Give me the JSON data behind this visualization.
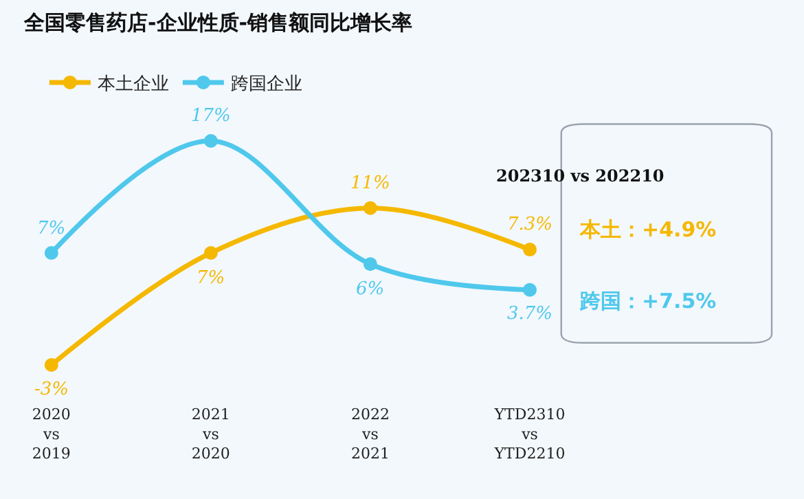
{
  "chart_data": [
    {
      "type": "line",
      "title": "全国零售药店-企业性质-销售额同比增长率",
      "categories": [
        "2020\nvs\n2019",
        "2021\nvs\n2020",
        "2022\nvs\n2021",
        "YTD2310\nvs\nYTD2210"
      ],
      "series": [
        {
          "name": "本土企业",
          "color": "#f5b800",
          "values": [
            -3,
            7,
            11,
            7.3
          ],
          "value_labels": [
            "-3%",
            "7%",
            "11%",
            "7.3%"
          ]
        },
        {
          "name": "跨国企业",
          "color": "#4fc8ec",
          "values": [
            7,
            17,
            6,
            3.7
          ],
          "value_labels": [
            "7%",
            "17%",
            "6%",
            "3.7%"
          ]
        }
      ],
      "legend": "top",
      "marker": "circle",
      "line_style": "solid",
      "tick_labels": "x"
    },
    {
      "type": "other",
      "title": "202310 vs 202210",
      "annotations": [
        "本土：+4.9%",
        "跨国：+7.5%"
      ]
    }
  ]
}
